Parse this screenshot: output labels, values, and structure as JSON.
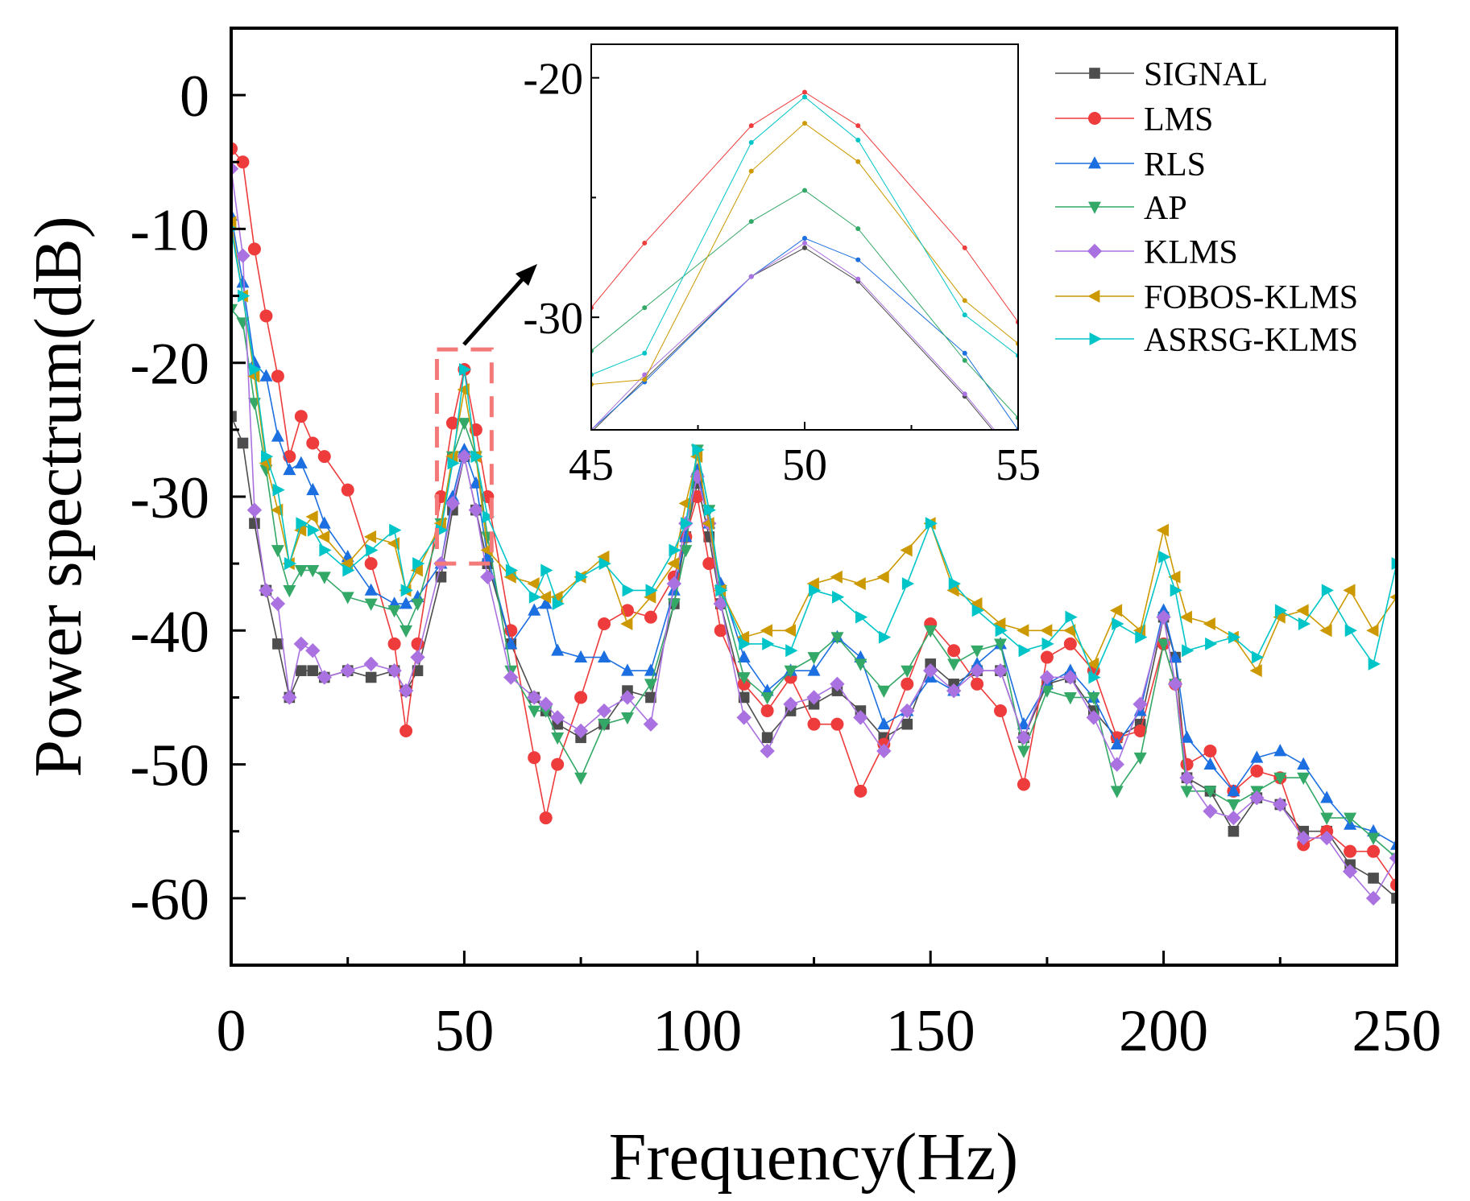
{
  "chart_data": {
    "type": "line",
    "xlabel": "Frequency(Hz)",
    "ylabel": "Power spectrum(dB)",
    "xlim": [
      0,
      250
    ],
    "ylim": [
      -65,
      5
    ],
    "xticks": [
      0,
      50,
      100,
      150,
      200,
      250
    ],
    "yticks": [
      0,
      -10,
      -20,
      -30,
      -40,
      -50,
      -60
    ],
    "xtick_labels": [
      "0",
      "50",
      "100",
      "150",
      "200",
      "250"
    ],
    "ytick_labels": [
      "0",
      "-10",
      "-20",
      "-30",
      "-40",
      "-50",
      "-60"
    ],
    "grid": false,
    "legend_position": "top-right",
    "x": [
      0,
      2.5,
      5,
      7.5,
      10,
      12.5,
      15,
      17.5,
      20,
      25,
      30,
      35,
      37.5,
      40,
      45,
      47.5,
      50,
      52.5,
      55,
      60,
      65,
      67.5,
      70,
      75,
      80,
      85,
      90,
      95,
      97.5,
      100,
      102.5,
      105,
      110,
      115,
      120,
      125,
      130,
      135,
      140,
      145,
      150,
      155,
      160,
      165,
      170,
      175,
      180,
      185,
      190,
      195,
      200,
      202.5,
      205,
      210,
      215,
      220,
      225,
      230,
      235,
      240,
      245,
      250
    ],
    "series": [
      {
        "name": "SIGNAL",
        "color": "#4d4d4d",
        "marker": "square",
        "values": [
          -24,
          -26,
          -32,
          -37,
          -41,
          -45,
          -43,
          -43,
          -43.5,
          -43,
          -43.5,
          -43,
          -44.5,
          -43,
          -36,
          -31,
          -27,
          -31,
          -35,
          -41,
          -45,
          -46,
          -47,
          -48,
          -47,
          -44.5,
          -45,
          -38,
          -33,
          -29,
          -33,
          -38,
          -45,
          -48,
          -46,
          -45.5,
          -44.5,
          -46,
          -48,
          -47,
          -42.5,
          -44,
          -43,
          -43,
          -48,
          -44,
          -43.5,
          -46,
          -48,
          -47,
          -39,
          -42,
          -51,
          -52,
          -55,
          -52.5,
          -53,
          -55,
          -55,
          -57.5,
          -58.5,
          -60
        ]
      },
      {
        "name": "LMS",
        "color": "#ee3b3b",
        "marker": "circle",
        "values": [
          -4,
          -5,
          -11.5,
          -16.5,
          -21,
          -27,
          -24,
          -26,
          -27,
          -29.5,
          -35,
          -41,
          -47.5,
          -41,
          -30,
          -24.5,
          -20.5,
          -25,
          -30,
          -40,
          -49.5,
          -54,
          -50,
          -45,
          -39.5,
          -38.5,
          -39,
          -36,
          -33,
          -30,
          -35,
          -40,
          -44,
          -46,
          -43.5,
          -47,
          -47,
          -52,
          -48.5,
          -44,
          -39.5,
          -41.5,
          -44,
          -46,
          -51.5,
          -42,
          -41,
          -43,
          -48,
          -47.5,
          -41,
          -44,
          -50,
          -49,
          -52,
          -50.5,
          -51,
          -56,
          -55,
          -56.5,
          -56.5,
          -59
        ]
      },
      {
        "name": "RLS",
        "color": "#1c6fe0",
        "marker": "triangle-up",
        "values": [
          -9,
          -14,
          -20,
          -21,
          -25.5,
          -28,
          -27.5,
          -29.5,
          -32,
          -34.5,
          -37,
          -38,
          -38,
          -37.5,
          -35,
          -30,
          -26.5,
          -29,
          -34.5,
          -41,
          -38.5,
          -38,
          -41.5,
          -42,
          -42,
          -43,
          -43,
          -37,
          -33,
          -28,
          -32,
          -36.5,
          -42,
          -44.5,
          -43,
          -43,
          -40.5,
          -42,
          -47,
          -46,
          -43.5,
          -44.5,
          -42.5,
          -41,
          -47,
          -44,
          -43,
          -45,
          -48.5,
          -46,
          -38.5,
          -42,
          -48,
          -50,
          -52,
          -49.5,
          -49,
          -50,
          -52.5,
          -54.5,
          -55,
          -56
        ]
      },
      {
        "name": "AP",
        "color": "#33a867",
        "marker": "triangle-down",
        "values": [
          -16,
          -17,
          -23,
          -28,
          -34,
          -37,
          -35.5,
          -35.5,
          -36,
          -37.5,
          -38,
          -38.5,
          -40,
          -38,
          -32,
          -27,
          -24.5,
          -27,
          -33,
          -43,
          -46,
          -46,
          -48,
          -51,
          -47,
          -46.5,
          -44,
          -38,
          -34,
          -26.5,
          -31,
          -37,
          -43.5,
          -45,
          -43,
          -42,
          -40.5,
          -42.5,
          -44.5,
          -43,
          -40,
          -42.5,
          -41.5,
          -41,
          -49,
          -44.5,
          -45,
          -45,
          -52,
          -49.5,
          -41,
          -44,
          -52,
          -52,
          -53,
          -52,
          -51,
          -51,
          -54,
          -54,
          -55.5,
          -57
        ]
      },
      {
        "name": "KLMS",
        "color": "#aa72e0",
        "marker": "diamond",
        "values": [
          -5.5,
          -12,
          -31,
          -37,
          -38,
          -45,
          -41,
          -41.5,
          -43.5,
          -43,
          -42.5,
          -43,
          -44.5,
          -42,
          -35,
          -30.5,
          -27,
          -31,
          -36,
          -43.5,
          -45,
          -45.5,
          -46.5,
          -47.5,
          -46,
          -45,
          -47,
          -36.5,
          -32,
          -28.5,
          -32,
          -38,
          -46.5,
          -49,
          -45.5,
          -45,
          -44,
          -46.5,
          -49,
          -46,
          -43,
          -44.5,
          -43,
          -43,
          -48,
          -43.5,
          -43.5,
          -46.5,
          -50,
          -45.5,
          -39,
          -44,
          -51,
          -53.5,
          -54,
          -52.5,
          -53,
          -55.5,
          -55.5,
          -58,
          -60,
          -57
        ]
      },
      {
        "name": "FOBOS-KLMS",
        "color": "#cc9900",
        "marker": "triangle-left",
        "values": [
          -9.5,
          -15,
          -21,
          -27.5,
          -31,
          -35,
          -32.5,
          -31.5,
          -33,
          -35,
          -33,
          -33.5,
          -37,
          -35.5,
          -32,
          -27,
          -22,
          -27,
          -34,
          -36,
          -36.5,
          -37.5,
          -37.5,
          -36,
          -34.5,
          -39.5,
          -37.5,
          -35,
          -30.5,
          -27,
          -32,
          -37,
          -40.5,
          -40,
          -40,
          -36.5,
          -36,
          -36.5,
          -36,
          -34,
          -32,
          -37,
          -38,
          -39.5,
          -40,
          -40,
          -40,
          -42.5,
          -38.5,
          -40,
          -32.5,
          -36,
          -39,
          -39.5,
          -40.5,
          -43,
          -39,
          -38.5,
          -40,
          -37,
          -40,
          -37.5
        ]
      },
      {
        "name": "ASRSG-KLMS",
        "color": "#00c5c8",
        "marker": "triangle-right",
        "values": [
          -10,
          -15,
          -20.5,
          -27,
          -29.5,
          -35,
          -32,
          -32.5,
          -34,
          -35.5,
          -34,
          -32.5,
          -37,
          -35,
          -32.5,
          -27.5,
          -20.5,
          -27,
          -31.5,
          -35.5,
          -37.5,
          -35.5,
          -38,
          -36,
          -35,
          -37,
          -37,
          -34,
          -32,
          -26.5,
          -31,
          -37,
          -41,
          -41,
          -41.5,
          -37,
          -37.5,
          -39,
          -40.5,
          -36.5,
          -32,
          -36.5,
          -38.5,
          -40,
          -41.5,
          -41,
          -39,
          -43.5,
          -39.5,
          -40.5,
          -34.5,
          -37,
          -41.5,
          -41,
          -40.5,
          -42,
          -38.5,
          -39.5,
          -37,
          -40,
          -42.5,
          -35
        ]
      }
    ],
    "inset": {
      "xlim": [
        45,
        55
      ],
      "ylim": [
        -34.7,
        -18.6
      ],
      "xticks": [
        45,
        50,
        55
      ],
      "yticks": [
        -20,
        -30
      ],
      "xtick_labels": [
        "45",
        "50",
        "55"
      ],
      "ytick_labels": [
        "-20",
        "-30"
      ],
      "x": [
        45,
        46.25,
        48.75,
        50,
        51.25,
        53.75,
        55
      ],
      "series": [
        {
          "name": "SIGNAL",
          "values": [
            -34.8,
            -32.6,
            -28.3,
            -27.1,
            -28.5,
            -33.3,
            -36
          ]
        },
        {
          "name": "LMS",
          "values": [
            -29.6,
            -26.9,
            -22,
            -20.6,
            -22,
            -27.1,
            -30.2
          ]
        },
        {
          "name": "RLS",
          "values": [
            -34.7,
            -32.7,
            -28.3,
            -26.7,
            -27.6,
            -31.5,
            -34.7
          ]
        },
        {
          "name": "AP",
          "values": [
            -31.4,
            -29.6,
            -26,
            -24.7,
            -26.3,
            -31.8,
            -34.2
          ]
        },
        {
          "name": "KLMS",
          "values": [
            -34.7,
            -32.4,
            -28.3,
            -26.9,
            -28.4,
            -33.2,
            -35.9
          ]
        },
        {
          "name": "FOBOS-KLMS",
          "values": [
            -32.8,
            -32.6,
            -23.9,
            -21.9,
            -23.5,
            -29.3,
            -31.1
          ]
        },
        {
          "name": "ASRSG-KLMS",
          "values": [
            -32.4,
            -31.5,
            -22.7,
            -20.8,
            -22.6,
            -29.9,
            -31.6
          ]
        }
      ]
    },
    "zoom_box": {
      "xrange": [
        45,
        55
      ],
      "yrange": [
        -35,
        -19
      ]
    }
  }
}
